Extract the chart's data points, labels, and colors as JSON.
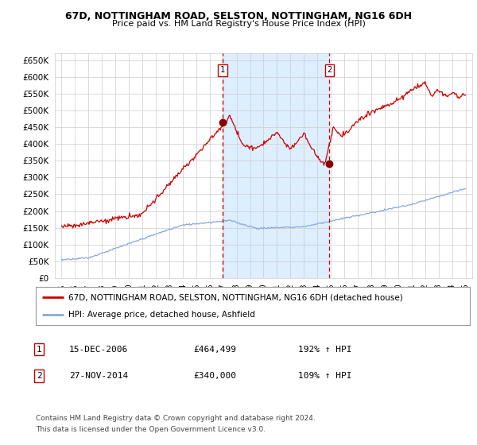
{
  "title": "67D, NOTTINGHAM ROAD, SELSTON, NOTTINGHAM, NG16 6DH",
  "subtitle": "Price paid vs. HM Land Registry's House Price Index (HPI)",
  "yticks": [
    0,
    50000,
    100000,
    150000,
    200000,
    250000,
    300000,
    350000,
    400000,
    450000,
    500000,
    550000,
    600000,
    650000
  ],
  "ylim": [
    0,
    670000
  ],
  "xlim_start": 1994.5,
  "xlim_end": 2025.5,
  "xtick_years": [
    1995,
    1996,
    1997,
    1998,
    1999,
    2000,
    2001,
    2002,
    2003,
    2004,
    2005,
    2006,
    2007,
    2008,
    2009,
    2010,
    2011,
    2012,
    2013,
    2014,
    2015,
    2016,
    2017,
    2018,
    2019,
    2020,
    2021,
    2022,
    2023,
    2024,
    2025
  ],
  "sale1_x": 2006.96,
  "sale1_y": 464499,
  "sale2_x": 2014.9,
  "sale2_y": 340000,
  "legend_line1": "67D, NOTTINGHAM ROAD, SELSTON, NOTTINGHAM, NG16 6DH (detached house)",
  "legend_line2": "HPI: Average price, detached house, Ashfield",
  "table_row1": [
    "1",
    "15-DEC-2006",
    "£464,499",
    "192% ↑ HPI"
  ],
  "table_row2": [
    "2",
    "27-NOV-2014",
    "£340,000",
    "109% ↑ HPI"
  ],
  "footnote1": "Contains HM Land Registry data © Crown copyright and database right 2024.",
  "footnote2": "This data is licensed under the Open Government Licence v3.0.",
  "line1_color": "#cc0000",
  "line2_color": "#88aadd",
  "shade_color": "#ddeeff",
  "vline_color": "#cc0000",
  "background_color": "#ffffff",
  "grid_color": "#cccccc"
}
